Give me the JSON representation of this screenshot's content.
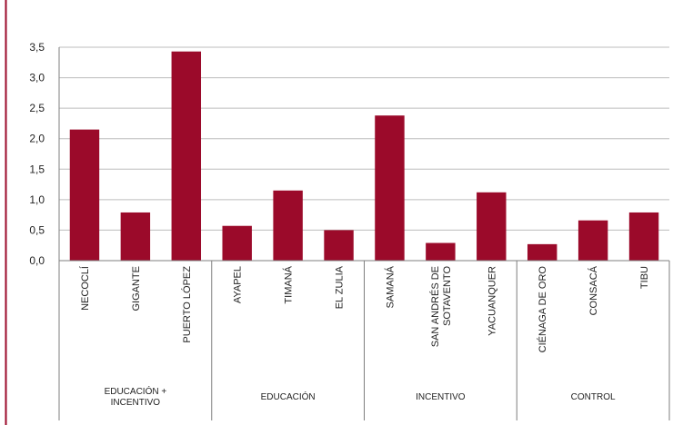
{
  "chart_data": {
    "type": "bar",
    "title": "",
    "xlabel": "",
    "ylabel": "",
    "ylim": [
      0,
      3.5
    ],
    "yticks": [
      "0,0",
      "0,5",
      "1,0",
      "1,5",
      "2,0",
      "2,5",
      "3,0",
      "3,5"
    ],
    "grid": true,
    "color": "#9B0A2A",
    "groups": [
      {
        "label_lines": [
          "EDUCACIÓN +",
          "INCENTIVO"
        ],
        "categories": [
          {
            "name_lines": [
              "NECOCLÍ"
            ],
            "value": 2.15
          },
          {
            "name_lines": [
              "GIGANTE"
            ],
            "value": 0.79
          },
          {
            "name_lines": [
              "PUERTO LÓPEZ"
            ],
            "value": 3.43
          }
        ]
      },
      {
        "label_lines": [
          "EDUCACIÓN"
        ],
        "categories": [
          {
            "name_lines": [
              "AYAPEL"
            ],
            "value": 0.57
          },
          {
            "name_lines": [
              "TIMANÁ"
            ],
            "value": 1.15
          },
          {
            "name_lines": [
              "EL ZULIA"
            ],
            "value": 0.5
          }
        ]
      },
      {
        "label_lines": [
          "INCENTIVO"
        ],
        "categories": [
          {
            "name_lines": [
              "SAMANÁ"
            ],
            "value": 2.38
          },
          {
            "name_lines": [
              "SAN ANDRÉS DE",
              "SOTAVENTO"
            ],
            "value": 0.29
          },
          {
            "name_lines": [
              "YACUANQUER"
            ],
            "value": 1.12
          }
        ]
      },
      {
        "label_lines": [
          "CONTROL"
        ],
        "categories": [
          {
            "name_lines": [
              "CIÉNAGA DE ORO"
            ],
            "value": 0.27
          },
          {
            "name_lines": [
              "CONSACÁ"
            ],
            "value": 0.66
          },
          {
            "name_lines": [
              "TIBU"
            ],
            "value": 0.79
          }
        ]
      }
    ]
  }
}
